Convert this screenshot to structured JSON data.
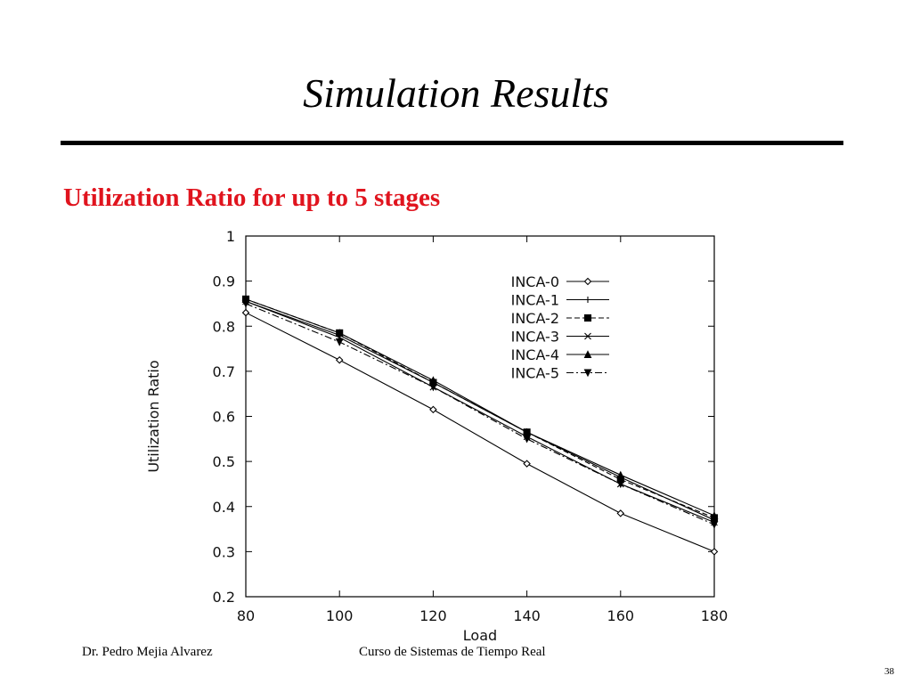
{
  "slide": {
    "title": "Simulation Results",
    "subtitle": "Utilization Ratio for up to 5 stages",
    "footer_author": "Dr. Pedro Mejia Alvarez",
    "footer_course": "Curso de Sistemas de Tiempo Real",
    "page_number": "38"
  },
  "colors": {
    "subtitle": "#e0141e",
    "plot": "#000000"
  },
  "chart_data": {
    "type": "line",
    "title": "",
    "xlabel": "Load",
    "ylabel": "Utilization Ratio",
    "xlim": [
      80,
      180
    ],
    "ylim": [
      0.2,
      1
    ],
    "x_ticks": [
      "80",
      "100",
      "120",
      "140",
      "160",
      "180"
    ],
    "y_ticks": [
      "0.2",
      "0.3",
      "0.4",
      "0.5",
      "0.6",
      "0.7",
      "0.8",
      "0.9",
      "1"
    ],
    "legend_position": "top-right",
    "grid": false,
    "x": [
      80,
      100,
      120,
      140,
      160,
      180
    ],
    "series": [
      {
        "name": "INCA-0",
        "marker": "diamond",
        "dash": "",
        "values": [
          0.83,
          0.725,
          0.615,
          0.495,
          0.385,
          0.3
        ]
      },
      {
        "name": "INCA-1",
        "marker": "plus",
        "dash": "",
        "values": [
          0.855,
          0.78,
          0.675,
          0.565,
          0.465,
          0.37
        ]
      },
      {
        "name": "INCA-2",
        "marker": "square",
        "dash": "6,3",
        "values": [
          0.86,
          0.785,
          0.675,
          0.565,
          0.46,
          0.375
        ]
      },
      {
        "name": "INCA-3",
        "marker": "x",
        "dash": "",
        "values": [
          0.855,
          0.775,
          0.665,
          0.555,
          0.45,
          0.365
        ]
      },
      {
        "name": "INCA-4",
        "marker": "triangle",
        "dash": "",
        "values": [
          0.86,
          0.785,
          0.68,
          0.565,
          0.47,
          0.38
        ]
      },
      {
        "name": "INCA-5",
        "marker": "triangle-down",
        "dash": "8,3,2,3",
        "values": [
          0.85,
          0.765,
          0.665,
          0.55,
          0.45,
          0.36
        ]
      }
    ]
  }
}
